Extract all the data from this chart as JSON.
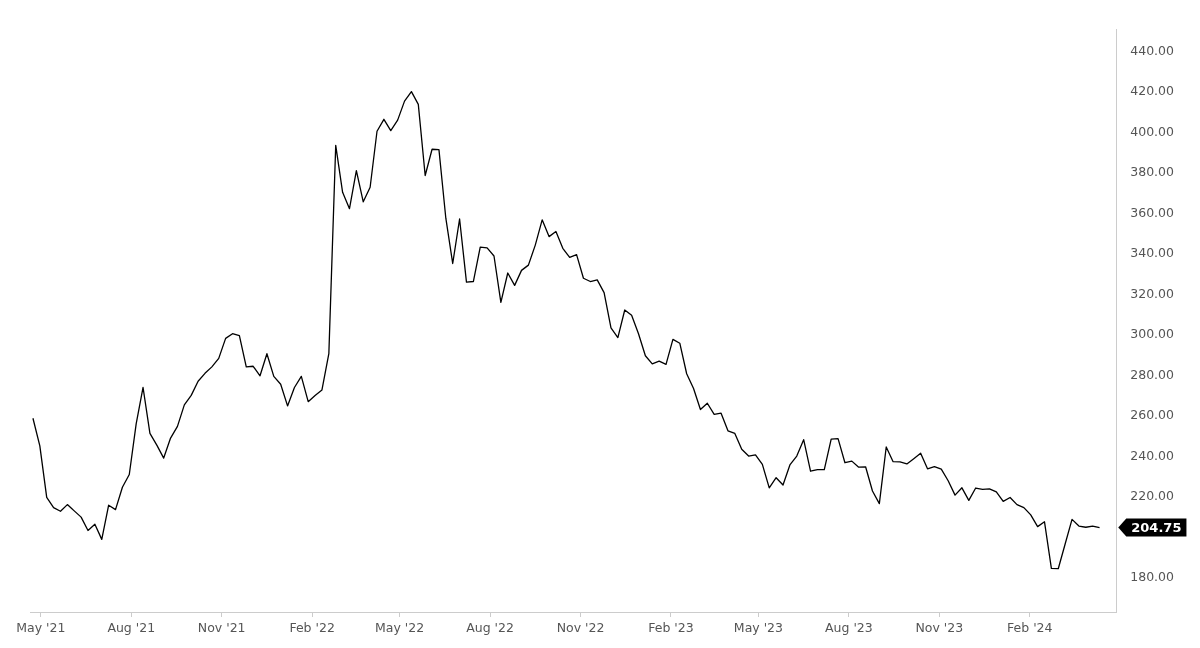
{
  "chart_data": {
    "type": "line",
    "x": [
      "2021-04-23",
      "2021-04-30",
      "2021-05-07",
      "2021-05-14",
      "2021-05-21",
      "2021-05-28",
      "2021-06-04",
      "2021-06-11",
      "2021-06-18",
      "2021-06-25",
      "2021-07-02",
      "2021-07-09",
      "2021-07-16",
      "2021-07-23",
      "2021-07-30",
      "2021-08-06",
      "2021-08-13",
      "2021-08-20",
      "2021-08-27",
      "2021-09-03",
      "2021-09-10",
      "2021-09-17",
      "2021-09-24",
      "2021-10-01",
      "2021-10-08",
      "2021-10-15",
      "2021-10-22",
      "2021-10-29",
      "2021-11-05",
      "2021-11-12",
      "2021-11-19",
      "2021-11-26",
      "2021-12-03",
      "2021-12-10",
      "2021-12-17",
      "2021-12-24",
      "2021-12-31",
      "2022-01-07",
      "2022-01-14",
      "2022-01-21",
      "2022-01-28",
      "2022-02-04",
      "2022-02-11",
      "2022-02-18",
      "2022-02-25",
      "2022-03-04",
      "2022-03-11",
      "2022-03-18",
      "2022-03-25",
      "2022-04-01",
      "2022-04-08",
      "2022-04-15",
      "2022-04-22",
      "2022-04-29",
      "2022-05-06",
      "2022-05-13",
      "2022-05-20",
      "2022-05-27",
      "2022-06-03",
      "2022-06-10",
      "2022-06-17",
      "2022-06-24",
      "2022-07-01",
      "2022-07-08",
      "2022-07-15",
      "2022-07-22",
      "2022-07-29",
      "2022-08-05",
      "2022-08-12",
      "2022-08-19",
      "2022-08-26",
      "2022-09-02",
      "2022-09-09",
      "2022-09-16",
      "2022-09-23",
      "2022-09-30",
      "2022-10-07",
      "2022-10-14",
      "2022-10-21",
      "2022-10-28",
      "2022-11-04",
      "2022-11-11",
      "2022-11-18",
      "2022-11-25",
      "2022-12-02",
      "2022-12-09",
      "2022-12-16",
      "2022-12-23",
      "2022-12-30",
      "2023-01-06",
      "2023-01-13",
      "2023-01-20",
      "2023-01-27",
      "2023-02-03",
      "2023-02-10",
      "2023-02-17",
      "2023-02-24",
      "2023-03-03",
      "2023-03-10",
      "2023-03-17",
      "2023-03-24",
      "2023-03-31",
      "2023-04-07",
      "2023-04-14",
      "2023-04-21",
      "2023-04-28",
      "2023-05-05",
      "2023-05-12",
      "2023-05-19",
      "2023-05-26",
      "2023-06-02",
      "2023-06-09",
      "2023-06-16",
      "2023-06-23",
      "2023-06-30",
      "2023-07-07",
      "2023-07-14",
      "2023-07-21",
      "2023-07-28",
      "2023-08-04",
      "2023-08-11",
      "2023-08-18",
      "2023-08-25",
      "2023-09-01",
      "2023-09-08",
      "2023-09-15",
      "2023-09-22",
      "2023-09-29",
      "2023-10-06",
      "2023-10-13",
      "2023-10-20",
      "2023-10-27",
      "2023-11-03",
      "2023-11-10",
      "2023-11-17",
      "2023-11-24",
      "2023-12-01",
      "2023-12-08",
      "2023-12-15",
      "2023-12-22",
      "2023-12-29",
      "2024-01-05",
      "2024-01-12",
      "2024-01-19",
      "2024-01-26",
      "2024-02-02",
      "2024-02-09",
      "2024-02-16",
      "2024-02-23",
      "2024-03-01",
      "2024-03-08",
      "2024-03-15",
      "2024-03-22",
      "2024-03-29",
      "2024-04-05",
      "2024-04-12"
    ],
    "series": [
      {
        "color": "#000000",
        "values": [
          258.8,
          245.1,
          219.7,
          214.6,
          212.8,
          216.1,
          213,
          209.9,
          203.3,
          206.4,
          198.9,
          215.8,
          213.6,
          224.7,
          231,
          256,
          274,
          251.3,
          245.5,
          239.1,
          249,
          254.8,
          265.4,
          270.1,
          277.1,
          281,
          284.2,
          288.4,
          298.3,
          300.6,
          299.6,
          284.2,
          284.5,
          279.8,
          290.7,
          279.5,
          275.6,
          264.9,
          274,
          279.5,
          267,
          270,
          272.8,
          290.7,
          393.7,
          370.5,
          362.4,
          381.2,
          365.8,
          373,
          400.7,
          406.6,
          401,
          406.2,
          415.6,
          420.3,
          414,
          378.8,
          391.8,
          391.6,
          357.7,
          335.3,
          357.3,
          326.1,
          326.4,
          343.4,
          343,
          339,
          316.1,
          330.6,
          324.5,
          331.9,
          334.5,
          344.4,
          356.9,
          348.6,
          351.1,
          342.8,
          338.3,
          339.7,
          328,
          326.4,
          327.2,
          320.9,
          303.5,
          298.7,
          312.3,
          309.7,
          300.6,
          289.7,
          285.7,
          287,
          285.4,
          297.8,
          295.9,
          280.8,
          273.5,
          263.1,
          266.2,
          260.7,
          261.3,
          252.6,
          251.3,
          243.5,
          240.1,
          240.7,
          236,
          224.4,
          229.4,
          225.8,
          235.7,
          240.1,
          248.2,
          232.6,
          233.4,
          233.4,
          248.5,
          248.7,
          236.8,
          237.6,
          234.6,
          234.8,
          222.8,
          216.6,
          244.6,
          237.3,
          237.2,
          236.2,
          238.8,
          241.5,
          233.8,
          234.9,
          233.6,
          227.9,
          220.8,
          224.4,
          218.2,
          224.3,
          223.6,
          223.9,
          222.4,
          217.7,
          219.6,
          216.1,
          214.6,
          211,
          205.2,
          207.6,
          184.6,
          184.4,
          196.6,
          208.8,
          205.5,
          204.9,
          205.5,
          204.75
        ]
      }
    ],
    "xlim": [
      "2021-04-20",
      "2024-04-29"
    ],
    "xticks": [
      {
        "value": "2021-05-01",
        "label": "May '21"
      },
      {
        "value": "2021-08-01",
        "label": "Aug '21"
      },
      {
        "value": "2021-11-01",
        "label": "Nov '21"
      },
      {
        "value": "2022-02-01",
        "label": "Feb '22"
      },
      {
        "value": "2022-05-01",
        "label": "May '22"
      },
      {
        "value": "2022-08-01",
        "label": "Aug '22"
      },
      {
        "value": "2022-11-01",
        "label": "Nov '22"
      },
      {
        "value": "2023-02-01",
        "label": "Feb '23"
      },
      {
        "value": "2023-05-01",
        "label": "May '23"
      },
      {
        "value": "2023-08-01",
        "label": "Aug '23"
      },
      {
        "value": "2023-11-01",
        "label": "Nov '23"
      },
      {
        "value": "2024-02-01",
        "label": "Feb '24"
      }
    ],
    "ylim": [
      163,
      451
    ],
    "yticks": [
      {
        "value": 180,
        "label": "180.00"
      },
      {
        "value": 220,
        "label": "220.00"
      },
      {
        "value": 240,
        "label": "240.00"
      },
      {
        "value": 260,
        "label": "260.00"
      },
      {
        "value": 280,
        "label": "280.00"
      },
      {
        "value": 300,
        "label": "300.00"
      },
      {
        "value": 320,
        "label": "320.00"
      },
      {
        "value": 340,
        "label": "340.00"
      },
      {
        "value": 360,
        "label": "360.00"
      },
      {
        "value": 380,
        "label": "380.00"
      },
      {
        "value": 400,
        "label": "400.00"
      },
      {
        "value": 420,
        "label": "420.00"
      },
      {
        "value": 440,
        "label": "440.00"
      }
    ],
    "annotations": [
      "204.75"
    ],
    "grid": false,
    "legend": false,
    "marker": "none",
    "line_style": "solid"
  }
}
